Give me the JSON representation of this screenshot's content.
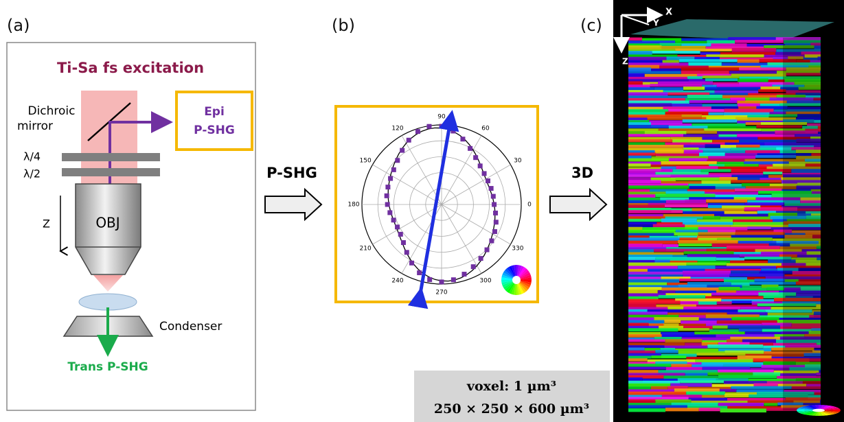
{
  "panels": {
    "a": {
      "label": "(a)",
      "excitation": "Ti-Sa fs excitation",
      "mirror": [
        "Dichroic",
        "mirror"
      ],
      "epi": [
        "Epi",
        "P-SHG"
      ],
      "quarter_wave": "λ/4",
      "half_wave": "λ/2",
      "z_axis": "Z",
      "objective": "OBJ",
      "condenser": "Condenser",
      "trans": "Trans P-SHG"
    },
    "b": {
      "label": "(b)",
      "arrow_label": "P-SHG",
      "polar_angles": [
        "0",
        "30",
        "60",
        "90",
        "120",
        "150",
        "180",
        "210",
        "240",
        "270",
        "300",
        "330"
      ]
    },
    "c": {
      "label": "(c)",
      "arrow_label": "3D",
      "axes": {
        "x": "X",
        "y": "Y",
        "z": "Z"
      },
      "voxel": "voxel: 1 µm³",
      "volume": "250 × 250 × 600 µm³"
    }
  }
}
